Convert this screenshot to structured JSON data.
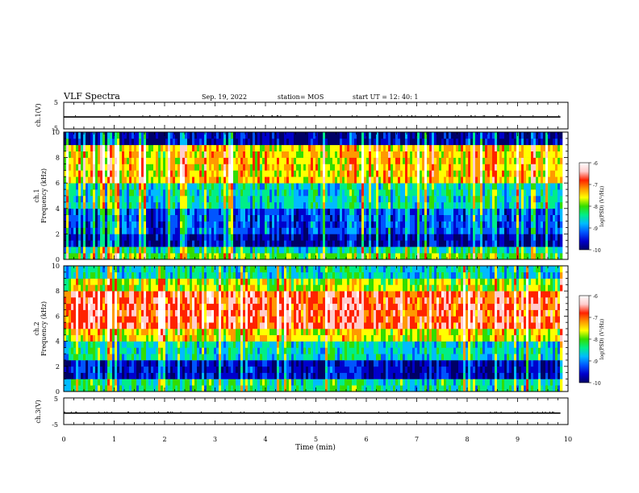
{
  "header": {
    "title": "VLF Spectra",
    "date": "Sep. 19, 2022",
    "station": "station= MOS",
    "start": "start  UT =   12: 40: 1"
  },
  "colors": {
    "colormap": [
      "#000066",
      "#0000cc",
      "#0055ff",
      "#00bbff",
      "#00ee88",
      "#33dd00",
      "#ffff00",
      "#ff9900",
      "#ff2200",
      "#ffcccc",
      "#ffffff"
    ],
    "trace": "#000000",
    "background": "#ffffff"
  },
  "chart_data": [
    {
      "id": "ch1_wave",
      "type": "line",
      "ylabel": "ch.1(V)",
      "ylim": [
        -5,
        5
      ],
      "yticks": [
        "5",
        "-5"
      ],
      "xlim": [
        0,
        10
      ],
      "series": [
        {
          "x": [
            0,
            9.85
          ],
          "values": [
            -0.5,
            -0.5
          ]
        }
      ]
    },
    {
      "id": "ch1_spectrogram",
      "type": "heatmap",
      "ylabel": "ch.1\nFrequency (kHz)",
      "ylabel_lines": [
        "ch.1",
        "Frequency (kHz)"
      ],
      "ylim": [
        0,
        10
      ],
      "yticks": [
        "0",
        "2",
        "4",
        "6",
        "8",
        "10"
      ],
      "xlim": [
        0,
        10
      ],
      "data_end_min": 9.85,
      "band_summary_kHz": {
        "0.0-0.5": -8.0,
        "0.5-1.0": -8.5,
        "1.0-2.0": -9.8,
        "2.0-4.0": -9.3,
        "4.0-6.0": -8.6,
        "6.0-9.0": -7.5,
        "9.0-10.0": -9.8
      },
      "colorbar": {
        "label": "log(PSD) (V²/Hz)",
        "range": [
          -10,
          -6
        ],
        "ticks": [
          "-6",
          "-7",
          "-8",
          "-9",
          "-10"
        ]
      }
    },
    {
      "id": "ch2_spectrogram",
      "type": "heatmap",
      "ylabel": "ch.2\nFrequency (kHz)",
      "ylabel_lines": [
        "ch.2",
        "Frequency (kHz)"
      ],
      "ylim": [
        0,
        10
      ],
      "yticks": [
        "0",
        "2",
        "4",
        "6",
        "8",
        "10"
      ],
      "xlim": [
        0,
        10
      ],
      "data_end_min": 9.85,
      "band_summary_kHz": {
        "0.0-1.0": -8.4,
        "1.0-2.5": -9.7,
        "2.5-4.0": -8.6,
        "4.0-5.0": -7.6,
        "5.0-8.0": -6.8,
        "8.0-9.0": -7.8,
        "9.0-10.0": -8.6
      },
      "colorbar": {
        "label": "log(PSD) (V²/Hz)",
        "range": [
          -10,
          -6
        ],
        "ticks": [
          "-6",
          "-7",
          "-8",
          "-9",
          "-10"
        ]
      }
    },
    {
      "id": "ch3_wave",
      "type": "line",
      "ylabel": "ch.3(V)",
      "ylim": [
        -5,
        5
      ],
      "yticks": [
        "5",
        "-5"
      ],
      "xlim": [
        0,
        10
      ],
      "series": [
        {
          "x": [
            0,
            9.85
          ],
          "values": [
            -0.7,
            -0.7
          ]
        }
      ]
    }
  ],
  "x_axis": {
    "label": "Time  (min)",
    "ticks": [
      "0",
      "1",
      "2",
      "3",
      "4",
      "5",
      "6",
      "7",
      "8",
      "9",
      "10"
    ]
  }
}
